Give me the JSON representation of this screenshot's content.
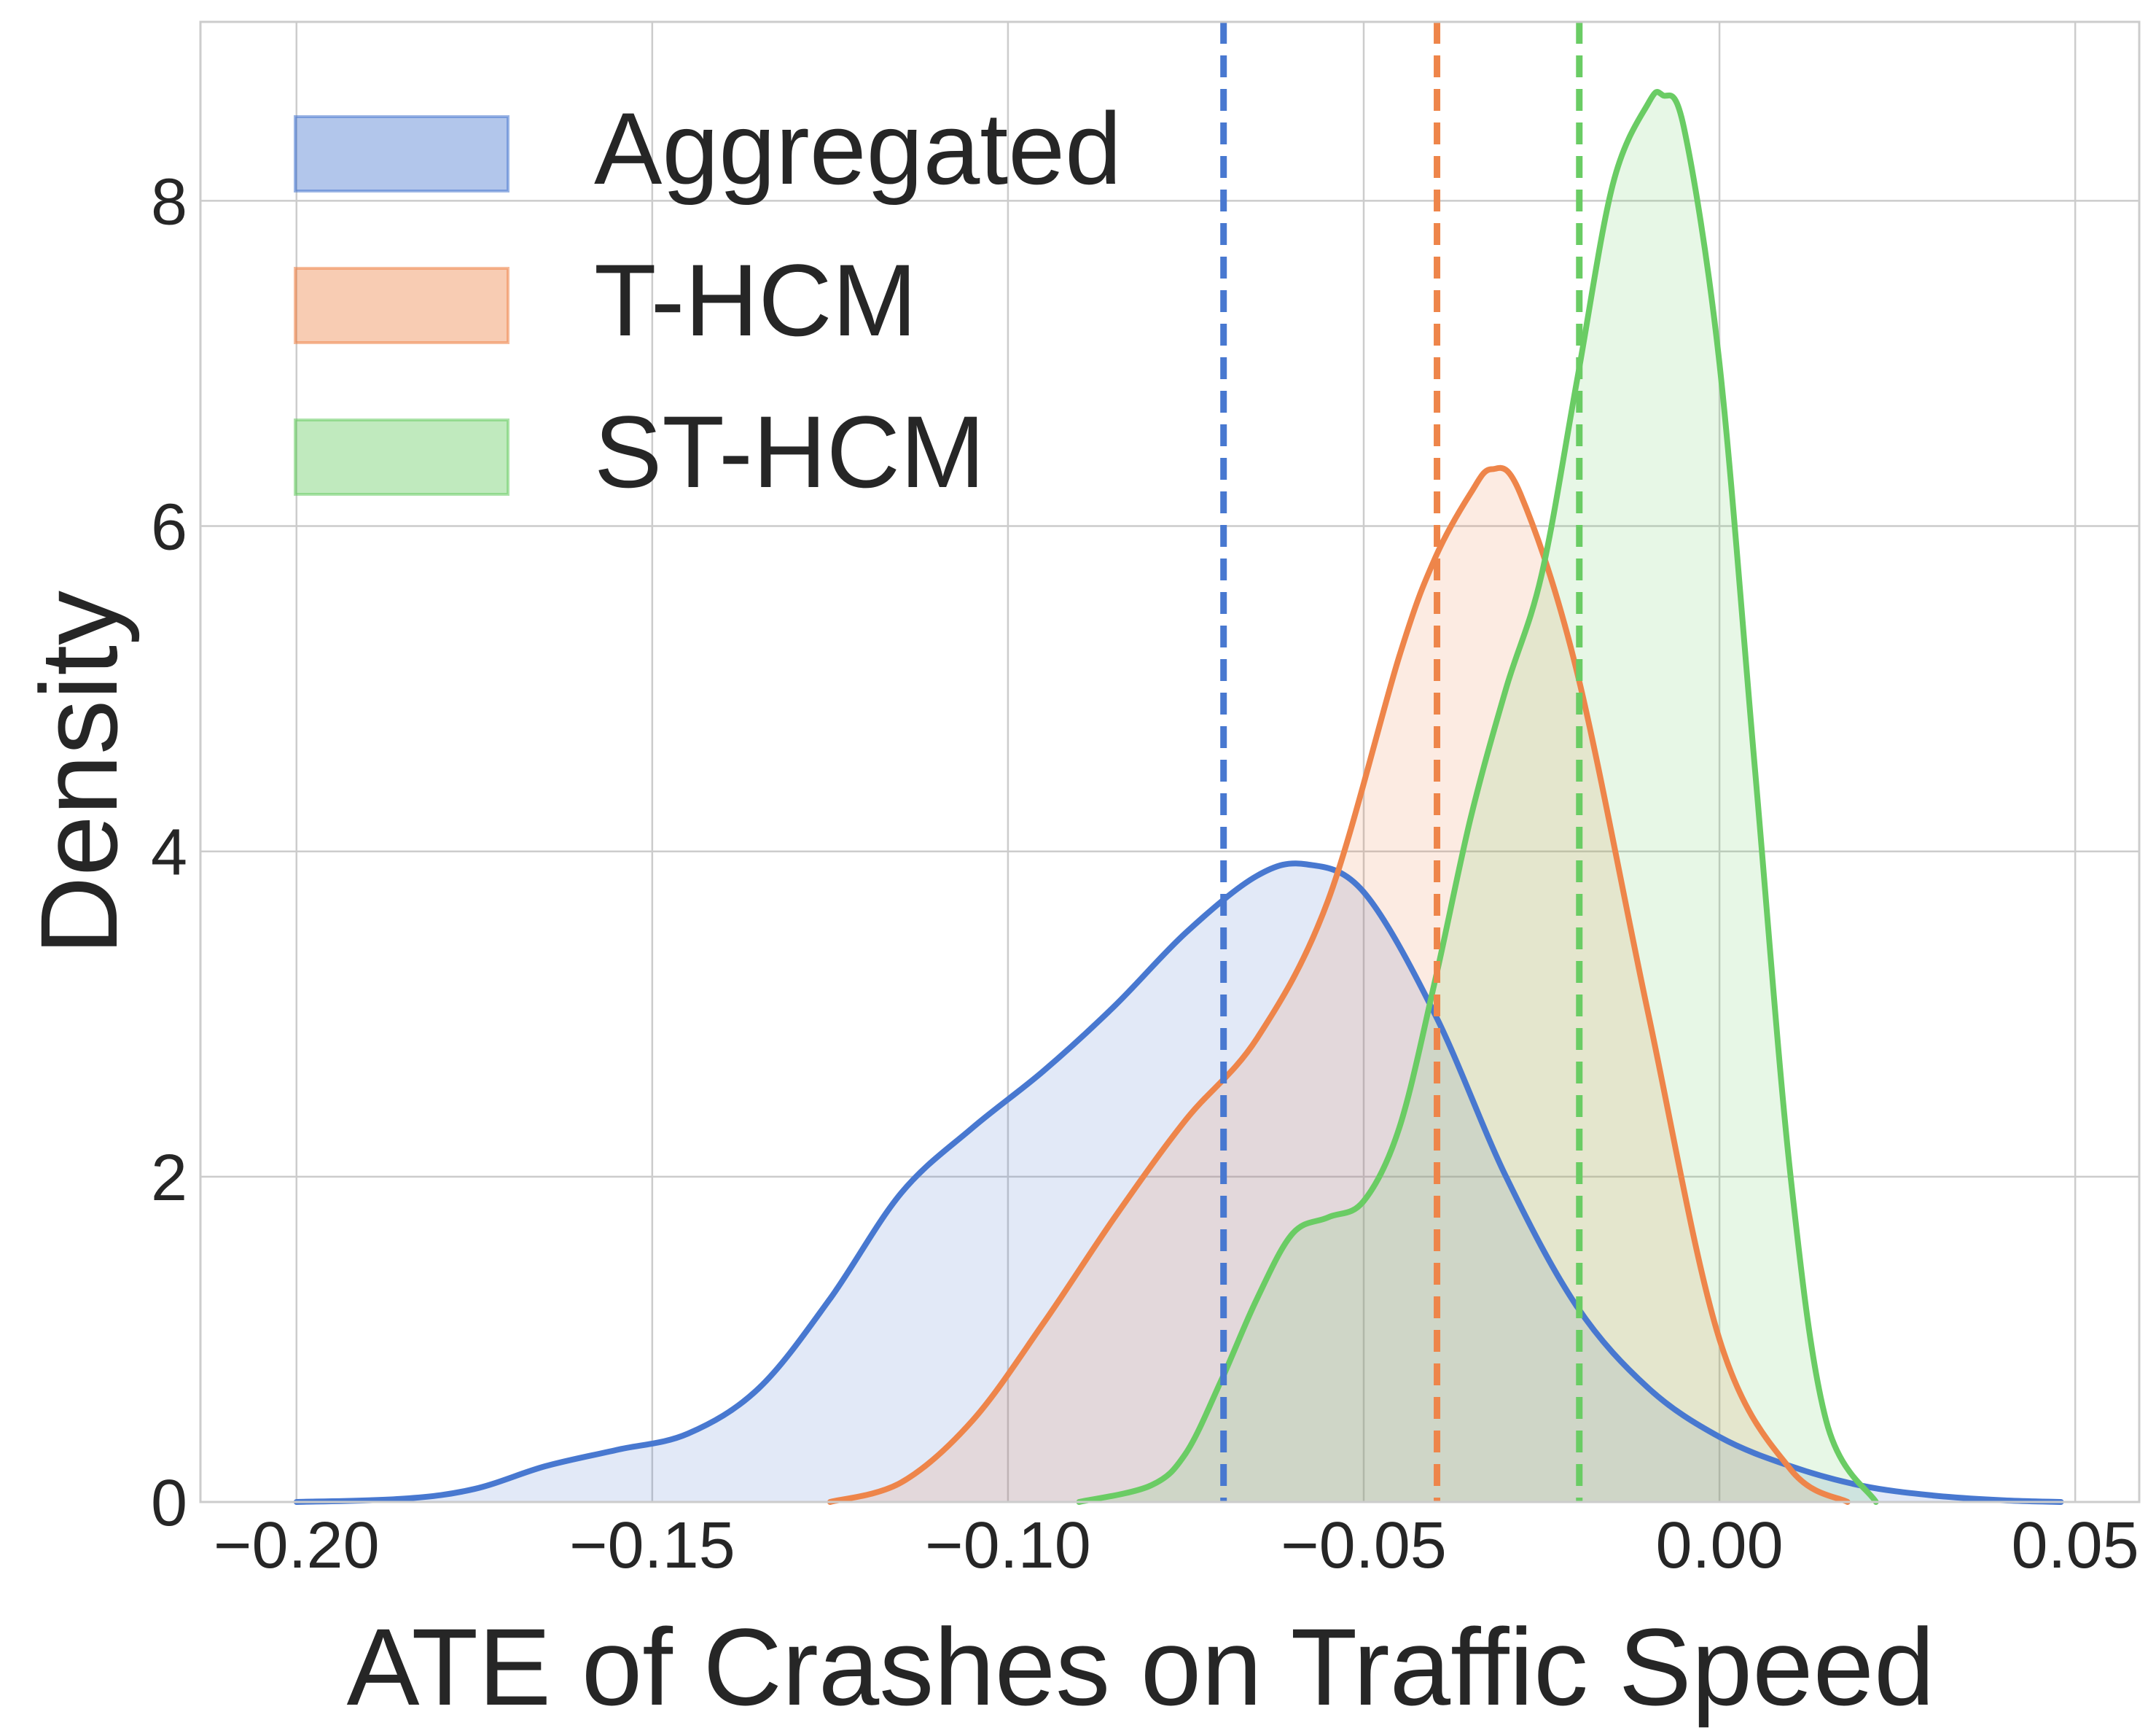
{
  "chart_data": {
    "type": "area",
    "title": "",
    "xlabel": "ATE of Crashes on Traffic Speed",
    "ylabel": "Density",
    "xlim": [
      -0.2135,
      0.059
    ],
    "ylim": [
      0,
      9.1
    ],
    "xticks": [
      -0.2,
      -0.15,
      -0.1,
      -0.05,
      0.0,
      0.05
    ],
    "xtick_labels": [
      "−0.20",
      "−0.15",
      "−0.10",
      "−0.05",
      "0.00",
      "0.05"
    ],
    "yticks": [
      0,
      2,
      4,
      6,
      8
    ],
    "ytick_labels": [
      "0",
      "2",
      "4",
      "6",
      "8"
    ],
    "grid": true,
    "legend_position": "top-left",
    "series": [
      {
        "name": "Aggregated",
        "color": "#4878d0",
        "mean": -0.0697,
        "x": [
          -0.2,
          -0.185,
          -0.175,
          -0.165,
          -0.155,
          -0.145,
          -0.135,
          -0.125,
          -0.115,
          -0.105,
          -0.095,
          -0.085,
          -0.075,
          -0.065,
          -0.058,
          -0.05,
          -0.04,
          -0.03,
          -0.02,
          -0.01,
          0.0,
          0.01,
          0.02,
          0.03,
          0.04,
          0.048
        ],
        "y": [
          0.0,
          0.02,
          0.08,
          0.22,
          0.32,
          0.42,
          0.7,
          1.25,
          1.9,
          2.3,
          2.65,
          3.05,
          3.5,
          3.85,
          3.92,
          3.75,
          3.0,
          2.0,
          1.2,
          0.7,
          0.4,
          0.22,
          0.1,
          0.04,
          0.01,
          0.0
        ]
      },
      {
        "name": "T-HCM",
        "color": "#ee854a",
        "mean": -0.0397,
        "x": [
          -0.125,
          -0.115,
          -0.105,
          -0.095,
          -0.085,
          -0.075,
          -0.065,
          -0.055,
          -0.045,
          -0.04,
          -0.035,
          -0.032,
          -0.028,
          -0.02,
          -0.01,
          0.0,
          0.01,
          0.018
        ],
        "y": [
          0.0,
          0.12,
          0.5,
          1.1,
          1.75,
          2.35,
          2.85,
          3.7,
          5.2,
          5.8,
          6.2,
          6.35,
          6.2,
          5.1,
          3.0,
          1.0,
          0.2,
          0.0
        ]
      },
      {
        "name": "ST-HCM",
        "color": "#6acc64",
        "mean": -0.0197,
        "x": [
          -0.09,
          -0.08,
          -0.075,
          -0.07,
          -0.065,
          -0.06,
          -0.055,
          -0.05,
          -0.045,
          -0.04,
          -0.035,
          -0.03,
          -0.025,
          -0.02,
          -0.015,
          -0.01,
          -0.008,
          -0.005,
          0.0,
          0.005,
          0.01,
          0.015,
          0.022
        ],
        "y": [
          0.0,
          0.1,
          0.3,
          0.75,
          1.25,
          1.65,
          1.75,
          1.85,
          2.3,
          3.2,
          4.2,
          5.0,
          5.7,
          6.9,
          8.1,
          8.6,
          8.65,
          8.45,
          7.0,
          4.5,
          2.0,
          0.5,
          0.0
        ]
      }
    ]
  }
}
